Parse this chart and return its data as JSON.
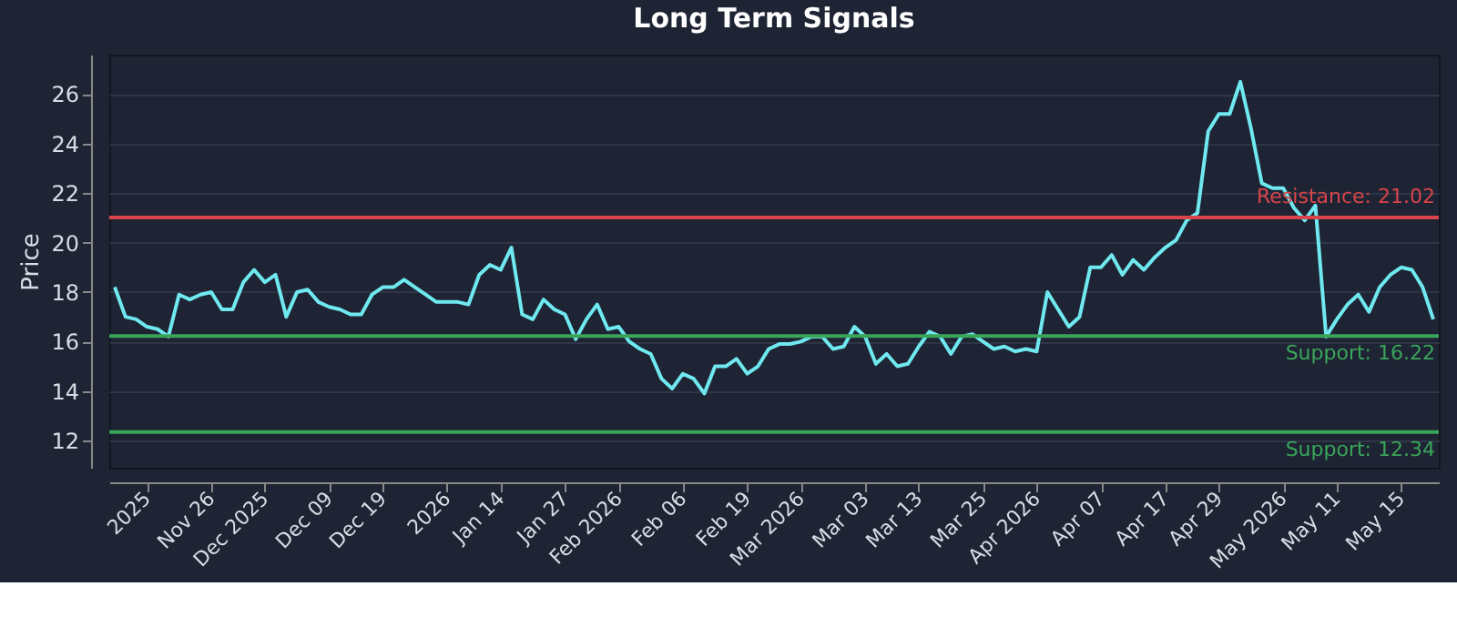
{
  "chart_data": {
    "type": "line",
    "title": "Long Term Signals",
    "ylabel": "Price",
    "categories": [
      null,
      null,
      null,
      "2025",
      null,
      null,
      null,
      null,
      null,
      "Nov 26",
      null,
      null,
      null,
      null,
      "Dec 2025",
      null,
      null,
      null,
      null,
      null,
      "Dec 09",
      null,
      null,
      null,
      null,
      "Dec 19",
      null,
      null,
      null,
      null,
      null,
      "2026",
      null,
      null,
      null,
      null,
      "Jan 14",
      null,
      null,
      null,
      null,
      null,
      "Jan 27",
      null,
      null,
      null,
      null,
      "Feb 2026",
      null,
      null,
      null,
      null,
      null,
      "Feb 06",
      null,
      null,
      null,
      null,
      null,
      "Feb 19",
      null,
      null,
      null,
      null,
      "Mar 2026",
      null,
      null,
      null,
      null,
      null,
      "Mar 03",
      null,
      null,
      null,
      null,
      "Mar 13",
      null,
      null,
      null,
      null,
      null,
      "Mar 25",
      null,
      null,
      null,
      null,
      "Apr 2026",
      null,
      null,
      null,
      null,
      null,
      "Apr 07",
      null,
      null,
      null,
      null,
      null,
      "Apr 17",
      null,
      null,
      null,
      null,
      "Apr 29",
      null,
      null,
      null,
      null,
      null,
      "May 2026",
      null,
      null,
      null,
      null,
      "May 11",
      null,
      null,
      null,
      null,
      null,
      "May 15",
      null,
      null,
      null
    ],
    "series": [
      {
        "color": "#6fe8f0",
        "values": [
          18.2,
          17.0,
          16.9,
          16.6,
          16.5,
          16.2,
          17.9,
          17.7,
          17.9,
          18.0,
          17.3,
          17.3,
          18.4,
          18.9,
          18.4,
          18.7,
          17.0,
          18.0,
          18.1,
          17.6,
          17.4,
          17.3,
          17.1,
          17.1,
          17.9,
          18.2,
          18.2,
          18.5,
          18.2,
          17.9,
          17.6,
          17.6,
          17.6,
          17.5,
          18.7,
          19.1,
          18.9,
          19.8,
          17.1,
          16.9,
          17.7,
          17.3,
          17.1,
          16.1,
          16.9,
          17.5,
          16.5,
          16.6,
          16.0,
          15.7,
          15.5,
          14.5,
          14.1,
          14.7,
          14.5,
          13.9,
          15.0,
          15.0,
          15.3,
          14.7,
          15.0,
          15.7,
          15.9,
          15.9,
          16.0,
          16.2,
          16.2,
          15.7,
          15.8,
          16.6,
          16.2,
          15.1,
          15.5,
          15.0,
          15.1,
          15.8,
          16.4,
          16.2,
          15.5,
          16.2,
          16.3,
          16.0,
          15.7,
          15.8,
          15.6,
          15.7,
          15.6,
          18.0,
          17.3,
          16.6,
          17.0,
          19.0,
          19.0,
          19.5,
          18.7,
          19.3,
          18.9,
          19.4,
          19.8,
          20.1,
          20.9,
          21.2,
          24.5,
          25.2,
          25.2,
          26.5,
          24.6,
          22.4,
          22.2,
          22.2,
          21.4,
          20.9,
          21.5,
          16.2,
          16.9,
          17.5,
          17.9,
          17.2,
          18.2,
          18.7,
          19.0,
          18.9,
          18.2,
          16.9
        ]
      }
    ],
    "ylim": [
      10.9,
      27.6
    ],
    "yticks": [
      12,
      14,
      16,
      18,
      20,
      22,
      24,
      26
    ],
    "grid": "y",
    "marker": "none",
    "line_style": "solid",
    "ref_lines": [
      {
        "axis": "y",
        "value": 21.02,
        "label": "Resistance: 21.02",
        "color": "#d9444a"
      },
      {
        "axis": "y",
        "value": 16.22,
        "label": "Support: 16.22",
        "color": "#3aa55a"
      },
      {
        "axis": "y",
        "value": 12.34,
        "label": "Support: 12.34",
        "color": "#3aa55a"
      }
    ]
  }
}
